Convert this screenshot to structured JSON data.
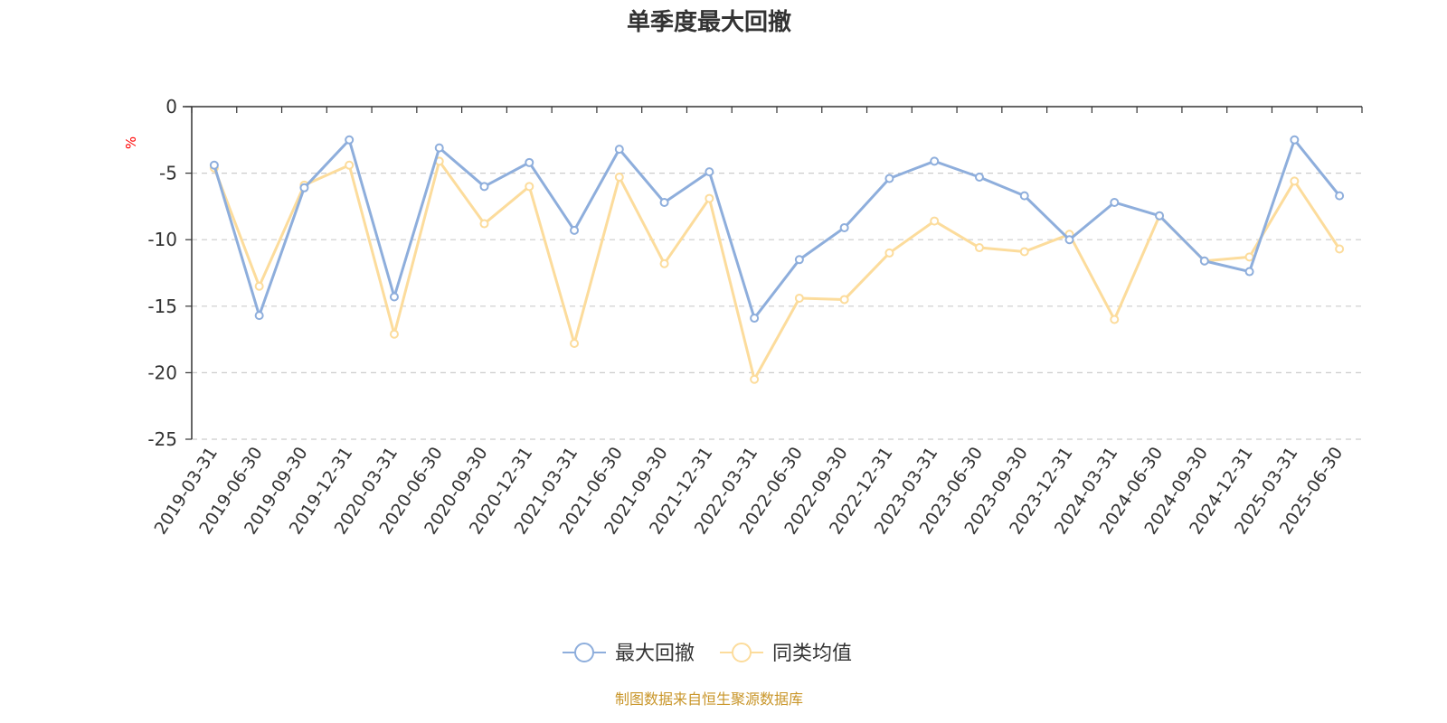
{
  "chart_data": {
    "type": "line",
    "title": "单季度最大回撤",
    "ylabel": "%",
    "ylim": [
      -25,
      0
    ],
    "yticks": [
      0,
      -5,
      -10,
      -15,
      -20,
      -25
    ],
    "grid": true,
    "legend_position": "bottom-center",
    "x": [
      "2019-03-31",
      "2019-06-30",
      "2019-09-30",
      "2019-12-31",
      "2020-03-31",
      "2020-06-30",
      "2020-09-30",
      "2020-12-31",
      "2021-03-31",
      "2021-06-30",
      "2021-09-30",
      "2021-12-31",
      "2022-03-31",
      "2022-06-30",
      "2022-09-30",
      "2022-12-31",
      "2023-03-31",
      "2023-06-30",
      "2023-09-30",
      "2023-12-31",
      "2024-03-31",
      "2024-06-30",
      "2024-09-30",
      "2024-12-31",
      "2025-03-31",
      "2025-06-30"
    ],
    "series": [
      {
        "name": "最大回撤",
        "color": "#8eaedc",
        "values": [
          -4.4,
          -15.7,
          -6.1,
          -2.5,
          -14.3,
          -3.1,
          -6.0,
          -4.2,
          -9.3,
          -3.2,
          -7.2,
          -4.9,
          -15.9,
          -11.5,
          -9.1,
          -5.4,
          -4.1,
          -5.3,
          -6.7,
          -10.0,
          -7.2,
          -8.2,
          -11.6,
          -12.4,
          -2.5,
          -6.7
        ]
      },
      {
        "name": "同类均值",
        "color": "#fcdc9c",
        "values": [
          -4.6,
          -13.5,
          -5.9,
          -4.4,
          -17.1,
          -4.1,
          -8.8,
          -6.0,
          -17.8,
          -5.3,
          -11.8,
          -6.9,
          -20.5,
          -14.4,
          -14.5,
          -11.0,
          -8.6,
          -10.6,
          -10.9,
          -9.6,
          -16.0,
          -8.2,
          -11.6,
          -11.3,
          -5.6,
          -10.7
        ]
      }
    ]
  },
  "source_text": "制图数据来自恒生聚源数据库"
}
